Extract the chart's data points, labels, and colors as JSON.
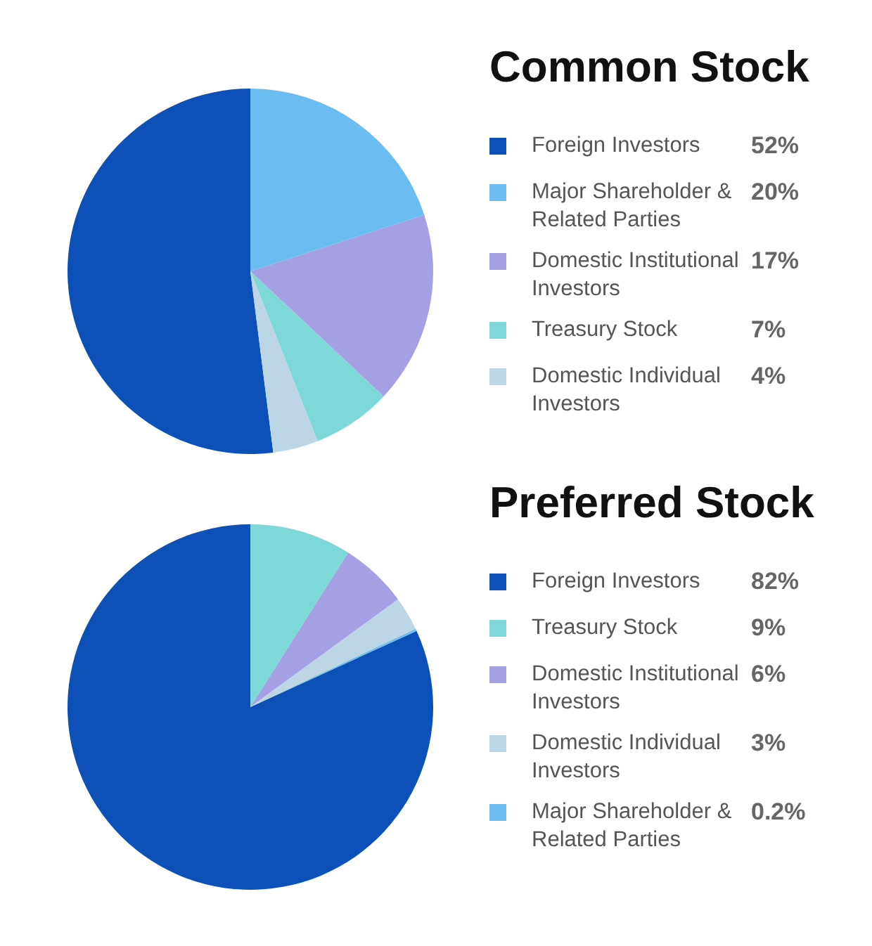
{
  "chart_data": [
    {
      "type": "pie",
      "title": "Common Stock",
      "legend": "right",
      "categories": [
        "Foreign Investors",
        "Major Shareholder & Related Parties",
        "Domestic Institutional Investors",
        "Treasury Stock",
        "Domestic Individual Investors"
      ],
      "values": [
        52,
        20,
        17,
        7,
        4
      ],
      "value_labels": [
        "52%",
        "20%",
        "17%",
        "7%",
        "4%"
      ],
      "colors": [
        "#0d50b8",
        "#6bbcf0",
        "#a59fe3",
        "#7ed8d8",
        "#bcd6e6"
      ]
    },
    {
      "type": "pie",
      "title": "Preferred Stock",
      "legend": "right",
      "categories": [
        "Foreign Investors",
        "Treasury Stock",
        "Domestic Institutional Investors",
        "Domestic Individual Investors",
        "Major Shareholder & Related Parties"
      ],
      "values": [
        82,
        9,
        6,
        3,
        0.2
      ],
      "value_labels": [
        "82%",
        "9%",
        "6%",
        "3%",
        "0.2%"
      ],
      "colors": [
        "#0d50b8",
        "#7ed8d8",
        "#a59fe3",
        "#bcd6e6",
        "#6bbcf0"
      ]
    }
  ]
}
